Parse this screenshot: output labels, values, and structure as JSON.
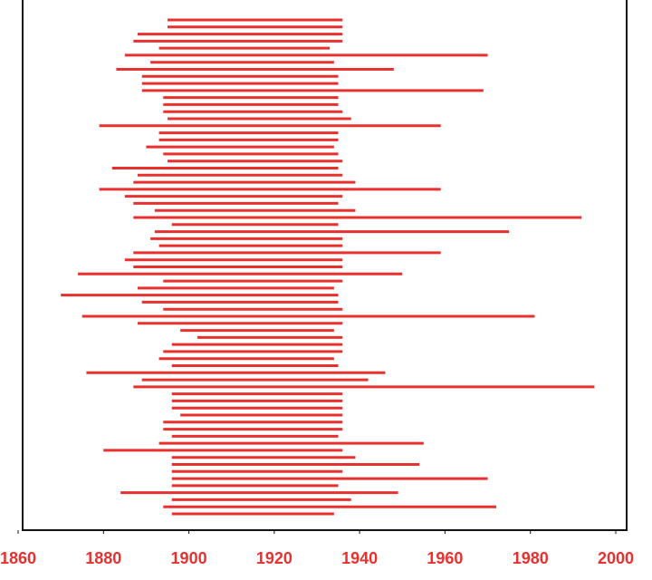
{
  "chart_data": {
    "type": "range",
    "color": "#e8312f",
    "starts": [
      1895,
      1895,
      1888,
      1887,
      1893,
      1885,
      1891,
      1883,
      1889,
      1889,
      1889,
      1894,
      1894,
      1894,
      1895,
      1879,
      1893,
      1893,
      1890,
      1894,
      1895,
      1882,
      1888,
      1887,
      1879,
      1885,
      1887,
      1892,
      1887,
      1896,
      1892,
      1891,
      1893,
      1887,
      1885,
      1887,
      1874,
      1894,
      1888,
      1870,
      1889,
      1894,
      1875,
      1888,
      1898,
      1902,
      1896,
      1894,
      1893,
      1896,
      1876,
      1889,
      1887,
      1896,
      1896,
      1896,
      1898,
      1894,
      1894,
      1896,
      1893,
      1880,
      1896,
      1896,
      1896,
      1896,
      1896,
      1884,
      1896,
      1894,
      1896
    ],
    "ends": [
      1936,
      1936,
      1936,
      1936,
      1933,
      1970,
      1934,
      1948,
      1935,
      1935,
      1969,
      1935,
      1935,
      1936,
      1938,
      1959,
      1935,
      1935,
      1934,
      1935,
      1936,
      1935,
      1936,
      1939,
      1959,
      1936,
      1935,
      1939,
      1992,
      1935,
      1975,
      1936,
      1936,
      1959,
      1936,
      1936,
      1950,
      1936,
      1934,
      1935,
      1935,
      1936,
      1981,
      1936,
      1934,
      1936,
      1936,
      1936,
      1934,
      1935,
      1946,
      1942,
      1995,
      1936,
      1936,
      1936,
      1936,
      1936,
      1936,
      1935,
      1955,
      1936,
      1939,
      1954,
      1936,
      1970,
      1935,
      1949,
      1938,
      1972,
      1934
    ],
    "xlim": [
      1860,
      2000
    ],
    "xticks": [
      1860,
      1880,
      1900,
      1920,
      1940,
      1960,
      1980,
      2000
    ]
  }
}
